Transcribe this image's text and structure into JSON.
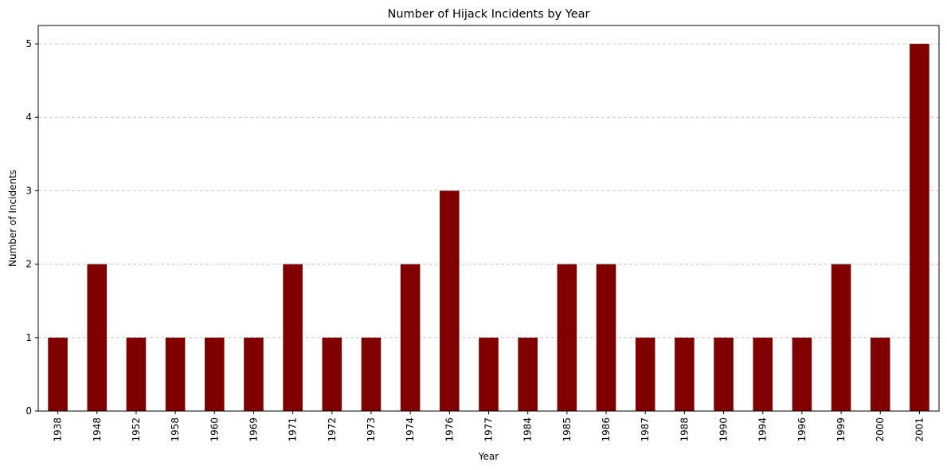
{
  "chart_data": {
    "type": "bar",
    "title": "Number of Hijack Incidents by Year",
    "xlabel": "Year",
    "ylabel": "Number of Incidents",
    "categories": [
      "1938",
      "1948",
      "1952",
      "1958",
      "1960",
      "1969",
      "1971",
      "1972",
      "1973",
      "1974",
      "1976",
      "1977",
      "1984",
      "1985",
      "1986",
      "1987",
      "1988",
      "1990",
      "1994",
      "1996",
      "1999",
      "2000",
      "2001"
    ],
    "values": [
      1,
      2,
      1,
      1,
      1,
      1,
      2,
      1,
      1,
      2,
      3,
      1,
      1,
      2,
      2,
      1,
      1,
      1,
      1,
      1,
      2,
      1,
      5
    ],
    "ylim": [
      0,
      5.25
    ],
    "yticks": [
      "0",
      "1",
      "2",
      "3",
      "4",
      "5"
    ],
    "grid": "y-dashed",
    "bar_color": "#800000",
    "grid_color": "#c8c8c8"
  }
}
